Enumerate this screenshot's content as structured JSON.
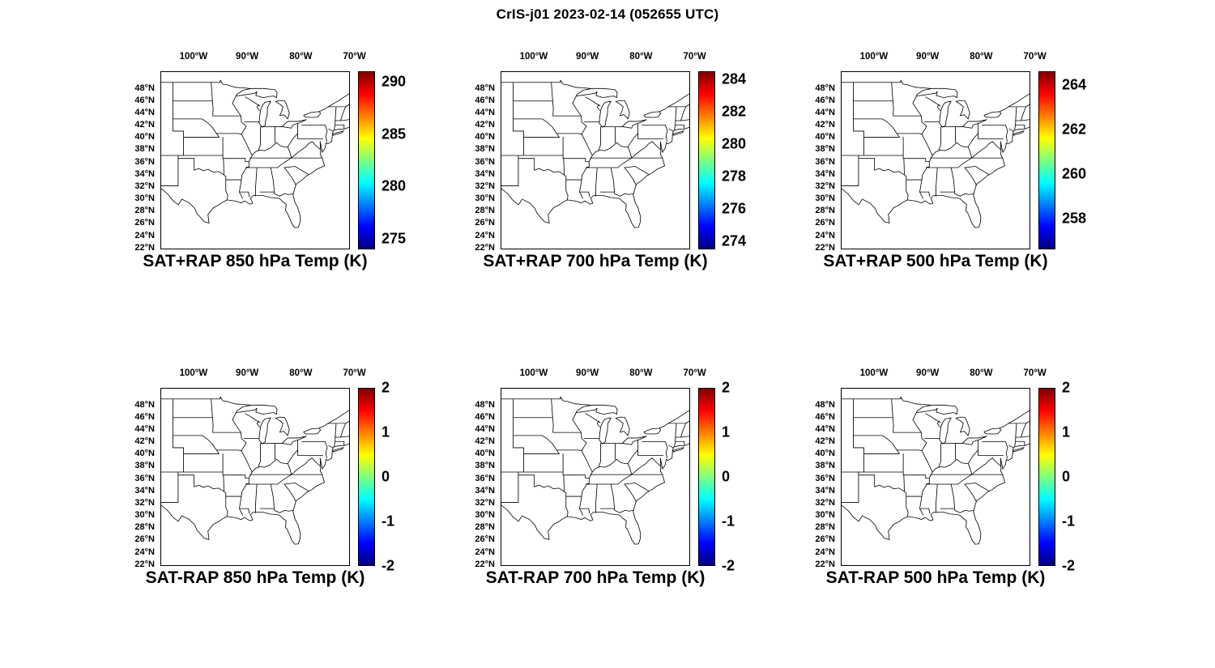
{
  "figure_title": "CrIS-j01 2023-02-14 (052655 UTC)",
  "map_axes": {
    "lon_tick_labels": [
      "100°W",
      "90°W",
      "80°W",
      "70°W"
    ],
    "lat_tick_labels": [
      "48°N",
      "46°N",
      "44°N",
      "42°N",
      "40°N",
      "38°N",
      "36°N",
      "34°N",
      "32°N",
      "30°N",
      "28°N",
      "26°N",
      "24°N",
      "22°N"
    ],
    "region": "Central and Eastern United States with state boundaries"
  },
  "colormap": {
    "name": "jet",
    "stops": [
      "#00007f",
      "#0000ff",
      "#00ffff",
      "#ffff00",
      "#ff0000",
      "#7f0000"
    ],
    "positions": [
      0,
      0.125,
      0.375,
      0.625,
      0.875,
      1
    ]
  },
  "chart_data": [
    {
      "type": "heatmap",
      "panel": "top-left",
      "title": "SAT+RAP 850 hPa Temp (K)",
      "units": "K",
      "colorbar_ticks": [
        290,
        285,
        280,
        275
      ],
      "colorbar_range": [
        274,
        291
      ]
    },
    {
      "type": "heatmap",
      "panel": "top-middle",
      "title": "SAT+RAP 700 hPa Temp (K)",
      "units": "K",
      "colorbar_ticks": [
        284,
        282,
        280,
        278,
        276,
        274
      ],
      "colorbar_range": [
        273.5,
        284.5
      ]
    },
    {
      "type": "heatmap",
      "panel": "top-right",
      "title": "SAT+RAP 500 hPa Temp (K)",
      "units": "K",
      "colorbar_ticks": [
        264,
        262,
        260,
        258
      ],
      "colorbar_range": [
        256.6,
        264.6
      ]
    },
    {
      "type": "heatmap",
      "panel": "bottom-left",
      "title": "SAT-RAP 850 hPa Temp (K)",
      "units": "K",
      "colorbar_ticks": [
        2,
        1,
        0,
        -1,
        -2
      ],
      "colorbar_range": [
        -2,
        2
      ]
    },
    {
      "type": "heatmap",
      "panel": "bottom-middle",
      "title": "SAT-RAP 700 hPa Temp (K)",
      "units": "K",
      "colorbar_ticks": [
        2,
        1,
        0,
        -1,
        -2
      ],
      "colorbar_range": [
        -2,
        2
      ]
    },
    {
      "type": "heatmap",
      "panel": "bottom-right",
      "title": "SAT-RAP 500 hPa Temp (K)",
      "units": "K",
      "colorbar_ticks": [
        2,
        1,
        0,
        -1,
        -2
      ],
      "colorbar_range": [
        -2,
        2
      ]
    }
  ]
}
